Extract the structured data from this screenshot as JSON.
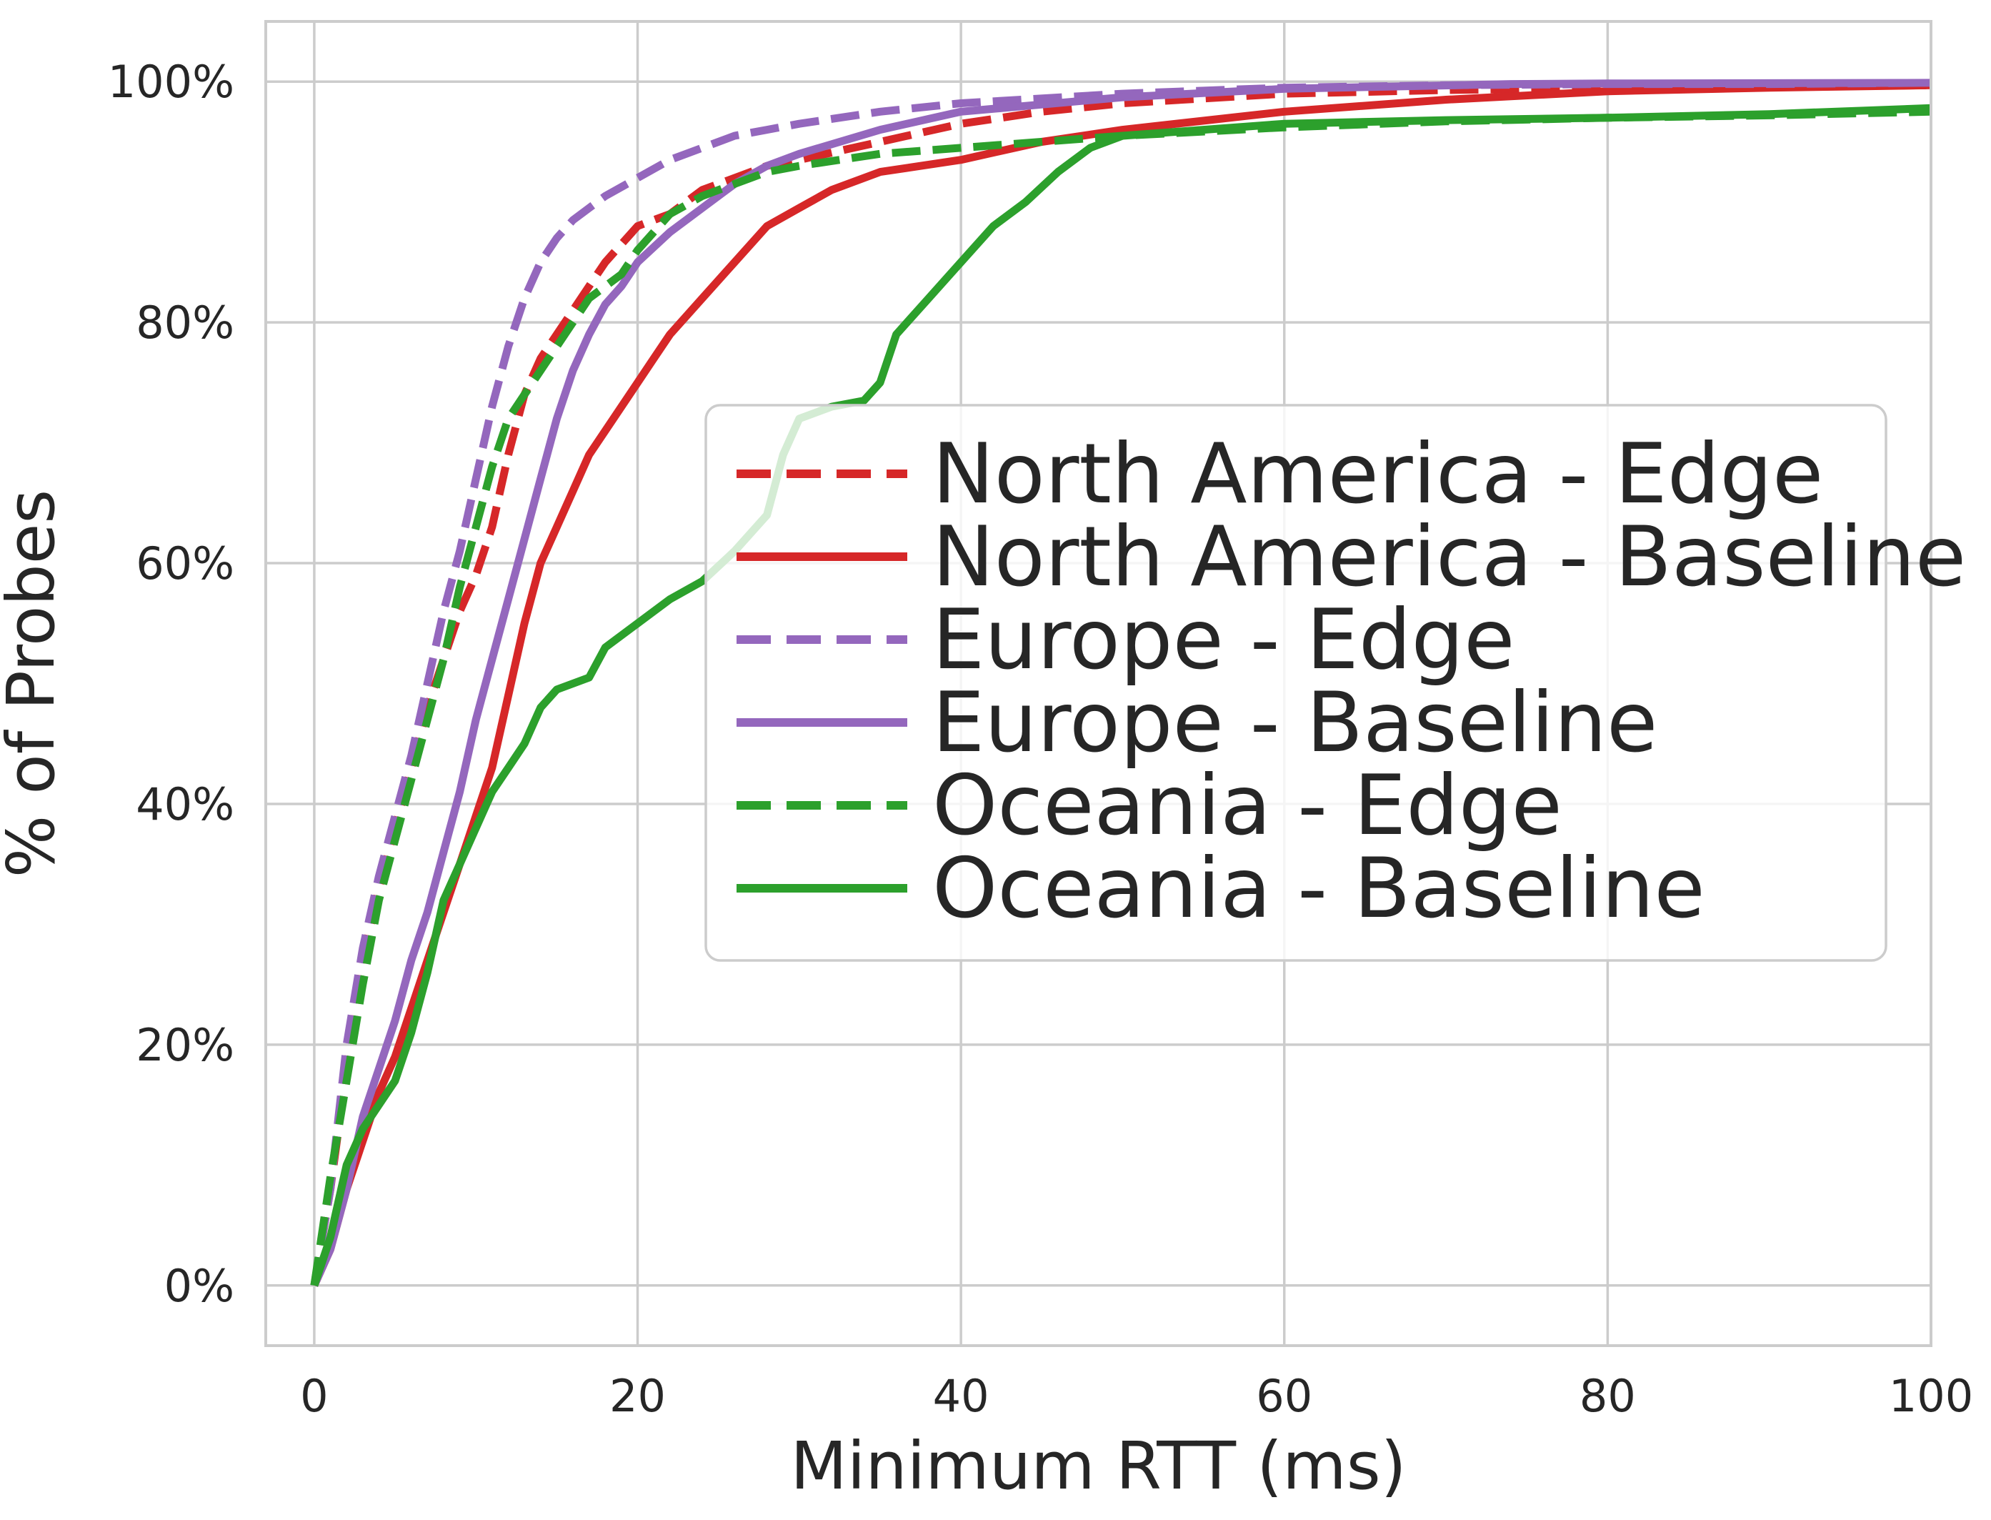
{
  "chart_data": {
    "type": "line",
    "title": "",
    "xlabel": "Minimum RTT (ms)",
    "ylabel": "% of Probes",
    "xlim": [
      -3,
      100
    ],
    "ylim": [
      -5,
      105
    ],
    "xticks": [
      0,
      20,
      40,
      60,
      80,
      100
    ],
    "xtick_labels": [
      "0",
      "20",
      "40",
      "60",
      "80",
      "100"
    ],
    "yticks": [
      0,
      20,
      40,
      60,
      80,
      100
    ],
    "ytick_labels": [
      "0%",
      "20%",
      "40%",
      "60%",
      "80%",
      "100%"
    ],
    "grid": true,
    "legend_position": "center-right",
    "series": [
      {
        "name": "North America - Edge",
        "color": "#d62728",
        "dashed": true,
        "x": [
          0,
          1,
          2,
          3,
          4,
          5,
          6,
          7,
          8,
          9,
          10,
          11,
          12,
          13,
          14,
          15,
          16,
          17,
          18,
          20,
          22,
          24,
          26,
          28,
          30,
          35,
          40,
          45,
          50,
          60,
          70,
          80,
          90,
          100
        ],
        "y": [
          0,
          8,
          18,
          27,
          33,
          38,
          43,
          48,
          52,
          56,
          59,
          63,
          69,
          74,
          77,
          79,
          81,
          83,
          85,
          88,
          89,
          91,
          92,
          93,
          93.5,
          95,
          96.5,
          97.5,
          98.2,
          99,
          99.3,
          99.5,
          99.6,
          99.7
        ]
      },
      {
        "name": "North America - Baseline",
        "color": "#d62728",
        "dashed": false,
        "x": [
          0,
          1,
          2,
          3,
          4,
          5,
          6,
          7,
          8,
          9,
          10,
          11,
          12,
          13,
          14,
          15,
          16,
          17,
          18,
          19,
          20,
          21,
          22,
          24,
          26,
          28,
          30,
          32,
          35,
          40,
          45,
          50,
          60,
          70,
          80,
          90,
          100
        ],
        "y": [
          0,
          3,
          8,
          12,
          16,
          19,
          23,
          27,
          31,
          35,
          39,
          43,
          49,
          55,
          60,
          63,
          66,
          69,
          71,
          73,
          75,
          77,
          79,
          82,
          85,
          88,
          89.5,
          91,
          92.5,
          93.5,
          95,
          96,
          97.5,
          98.5,
          99.2,
          99.5,
          99.7
        ]
      },
      {
        "name": "Europe - Edge",
        "color": "#9467bd",
        "dashed": true,
        "x": [
          0,
          1,
          2,
          3,
          4,
          5,
          6,
          7,
          8,
          9,
          10,
          11,
          12,
          13,
          14,
          15,
          16,
          17,
          18,
          20,
          22,
          24,
          26,
          28,
          30,
          35,
          40,
          50,
          60,
          70,
          80,
          90,
          100
        ],
        "y": [
          0,
          8,
          20,
          28,
          34,
          39,
          44,
          50,
          56,
          61,
          67,
          73,
          78,
          82,
          85,
          87,
          88.5,
          89.5,
          90.5,
          92,
          93.5,
          94.5,
          95.5,
          96,
          96.5,
          97.5,
          98.2,
          99,
          99.5,
          99.7,
          99.8,
          99.8,
          99.9
        ]
      },
      {
        "name": "Europe - Baseline",
        "color": "#9467bd",
        "dashed": false,
        "x": [
          0,
          1,
          2,
          3,
          4,
          5,
          6,
          7,
          8,
          9,
          10,
          11,
          12,
          13,
          14,
          15,
          16,
          17,
          18,
          19,
          20,
          22,
          24,
          26,
          28,
          30,
          35,
          40,
          50,
          60,
          74,
          80,
          100
        ],
        "y": [
          0,
          3,
          8,
          14,
          18,
          22,
          27,
          31,
          36,
          41,
          47,
          52,
          57,
          62,
          67,
          72,
          76,
          79,
          81.5,
          83,
          85,
          87.5,
          89.5,
          91.5,
          93,
          94,
          96,
          97.5,
          98.7,
          99.4,
          99.8,
          99.85,
          99.9
        ]
      },
      {
        "name": "Oceania - Edge",
        "color": "#2ca02c",
        "dashed": true,
        "x": [
          0,
          1,
          2,
          3,
          4,
          5,
          6,
          7,
          8,
          9,
          10,
          11,
          12,
          13,
          14,
          15,
          16,
          17,
          18,
          19,
          20,
          22,
          24,
          26,
          28,
          30,
          35,
          40,
          50,
          60,
          70,
          80,
          90,
          100
        ],
        "y": [
          0,
          9,
          17,
          25,
          32,
          37,
          42,
          47,
          52,
          58,
          63,
          68,
          72,
          74,
          76,
          78,
          80,
          82,
          83,
          84,
          86,
          89,
          90.5,
          91.5,
          92.5,
          93,
          94,
          94.5,
          95.5,
          96.2,
          96.7,
          97,
          97.2,
          97.5
        ]
      },
      {
        "name": "Oceania - Baseline",
        "color": "#2ca02c",
        "dashed": false,
        "x": [
          0,
          1,
          2,
          3,
          4,
          5,
          6,
          7,
          8,
          9,
          10,
          11,
          12,
          13,
          14,
          15,
          16,
          17,
          18,
          19,
          20,
          22,
          24,
          26,
          28,
          29,
          30,
          32,
          34,
          35,
          36,
          38,
          40,
          42,
          44,
          46,
          48,
          50,
          55,
          60,
          70,
          80,
          90,
          100
        ],
        "y": [
          0,
          4,
          10,
          13,
          15,
          17,
          21,
          26,
          32,
          35,
          38,
          41,
          43,
          45,
          48,
          49.5,
          50,
          50.5,
          53,
          54,
          55,
          57,
          58.5,
          61,
          64,
          69,
          72,
          73,
          73.5,
          75,
          79,
          82,
          85,
          88,
          90,
          92.5,
          94.5,
          95.5,
          96,
          96.5,
          96.8,
          97,
          97.3,
          97.8
        ]
      }
    ]
  }
}
